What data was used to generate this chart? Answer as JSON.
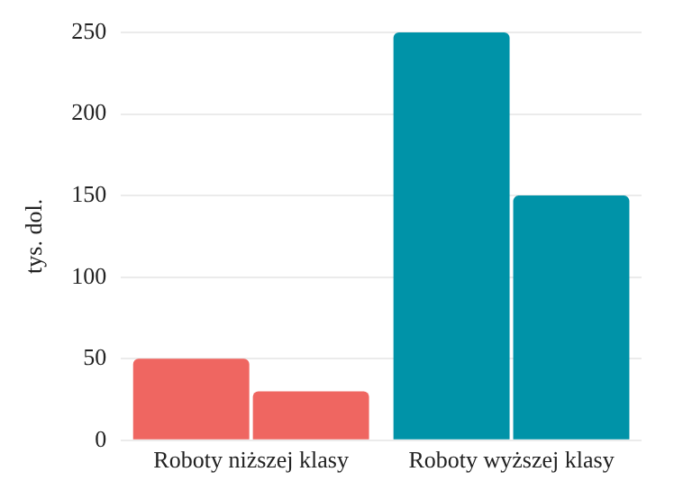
{
  "chart_data": {
    "type": "bar",
    "ylabel": "tys. dol.",
    "categories": [
      "Roboty niższej klasy",
      "Roboty wyższej klasy"
    ],
    "series": [
      {
        "colors": [
          "#ef6661",
          "#0093a8"
        ],
        "values": [
          50,
          250
        ]
      },
      {
        "colors": [
          "#ef6661",
          "#0093a8"
        ],
        "values": [
          30,
          150
        ]
      }
    ],
    "ylim": [
      0,
      250
    ],
    "yticks": [
      0,
      50,
      100,
      150,
      200,
      250
    ],
    "grid": "y",
    "legend": false
  }
}
